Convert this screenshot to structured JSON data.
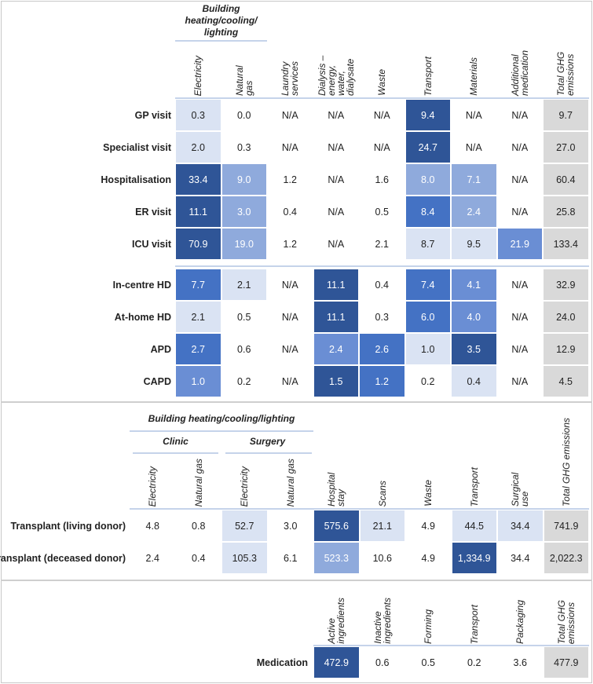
{
  "colors": {
    "0": "#ffffff",
    "1": "#dae3f3",
    "2": "#8faadc",
    "3": "#6a8ed4",
    "4": "#4472c4",
    "5": "#2f5597",
    "total": "#d9d9d9"
  },
  "chart_data": [
    {
      "type": "heatmap",
      "title": "",
      "group_header": "Building\nheating/cooling/\nlighting",
      "columns": [
        "Electricity",
        "Natural gas",
        "Laundry services",
        "Dialysis –\nenergy, water,\ndialysate",
        "Waste",
        "Transport",
        "Materials",
        "Additional\nmedication",
        "Total GHG emissions"
      ],
      "rows": [
        {
          "label": "GP visit",
          "values": [
            "0.3",
            "0.0",
            "N/A",
            "N/A",
            "N/A",
            "9.4",
            "N/A",
            "N/A",
            "9.7"
          ],
          "shade": [
            1,
            0,
            0,
            0,
            0,
            5,
            0,
            0
          ]
        },
        {
          "label": "Specialist visit",
          "values": [
            "2.0",
            "0.3",
            "N/A",
            "N/A",
            "N/A",
            "24.7",
            "N/A",
            "N/A",
            "27.0"
          ],
          "shade": [
            1,
            0,
            0,
            0,
            0,
            5,
            0,
            0
          ]
        },
        {
          "label": "Hospitalisation",
          "values": [
            "33.4",
            "9.0",
            "1.2",
            "N/A",
            "1.6",
            "8.0",
            "7.1",
            "N/A",
            "60.4"
          ],
          "shade": [
            5,
            2,
            0,
            0,
            0,
            2,
            2,
            0
          ]
        },
        {
          "label": "ER visit",
          "values": [
            "11.1",
            "3.0",
            "0.4",
            "N/A",
            "0.5",
            "8.4",
            "2.4",
            "N/A",
            "25.8"
          ],
          "shade": [
            5,
            2,
            0,
            0,
            0,
            4,
            2,
            0
          ]
        },
        {
          "label": "ICU visit",
          "values": [
            "70.9",
            "19.0",
            "1.2",
            "N/A",
            "2.1",
            "8.7",
            "9.5",
            "21.9",
            "133.4"
          ],
          "shade": [
            5,
            2,
            0,
            0,
            0,
            1,
            1,
            3
          ]
        },
        {
          "label": "In-centre HD",
          "values": [
            "7.7",
            "2.1",
            "N/A",
            "11.1",
            "0.4",
            "7.4",
            "4.1",
            "N/A",
            "32.9"
          ],
          "shade": [
            4,
            1,
            0,
            5,
            0,
            4,
            3,
            0
          ]
        },
        {
          "label": "At-home HD",
          "values": [
            "2.1",
            "0.5",
            "N/A",
            "11.1",
            "0.3",
            "6.0",
            "4.0",
            "N/A",
            "24.0"
          ],
          "shade": [
            1,
            0,
            0,
            5,
            0,
            4,
            3,
            0
          ]
        },
        {
          "label": "APD",
          "values": [
            "2.7",
            "0.6",
            "N/A",
            "2.4",
            "2.6",
            "1.0",
            "3.5",
            "N/A",
            "12.9"
          ],
          "shade": [
            4,
            0,
            0,
            3,
            4,
            1,
            5,
            0
          ]
        },
        {
          "label": "CAPD",
          "values": [
            "1.0",
            "0.2",
            "N/A",
            "1.5",
            "1.2",
            "0.2",
            "0.4",
            "N/A",
            "4.5"
          ],
          "shade": [
            3,
            0,
            0,
            5,
            4,
            0,
            1,
            0
          ]
        }
      ]
    },
    {
      "type": "heatmap",
      "title": "",
      "group_header": "Building heating/cooling/lighting",
      "subgroups": [
        "Clinic",
        "Surgery"
      ],
      "columns": [
        "Electricity",
        "Natural gas",
        "Electricity",
        "Natural gas",
        "Hospital stay",
        "Scans",
        "Waste",
        "Transport",
        "Surgical use",
        "Total GHG emissions"
      ],
      "rows": [
        {
          "label": "Transplant (living donor)",
          "values": [
            "4.8",
            "0.8",
            "52.7",
            "3.0",
            "575.6",
            "21.1",
            "4.9",
            "44.5",
            "34.4",
            "741.9"
          ],
          "shade": [
            0,
            0,
            1,
            0,
            5,
            1,
            0,
            1,
            1
          ]
        },
        {
          "label": "Transplant (deceased donor)",
          "values": [
            "2.4",
            "0.4",
            "105.3",
            "6.1",
            "523.3",
            "10.6",
            "4.9",
            "1,334.9",
            "34.4",
            "2,022.3"
          ],
          "shade": [
            0,
            0,
            1,
            0,
            2,
            0,
            0,
            5,
            0
          ]
        }
      ]
    },
    {
      "type": "heatmap",
      "title": "",
      "columns": [
        "Active\ningredients",
        "Inactive\ningredients",
        "Forming",
        "Transport",
        "Packaging",
        "Total GHG\nemissions"
      ],
      "rows": [
        {
          "label": "Medication",
          "values": [
            "472.9",
            "0.6",
            "0.5",
            "0.2",
            "3.6",
            "477.9"
          ],
          "shade": [
            5,
            0,
            0,
            0,
            0
          ]
        }
      ]
    }
  ]
}
